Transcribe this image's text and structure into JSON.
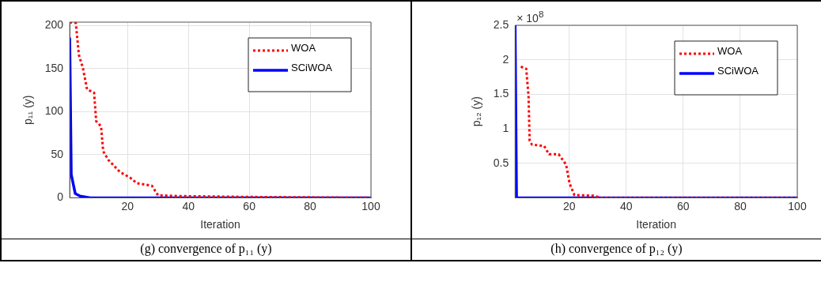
{
  "chart_data": [
    {
      "type": "line",
      "xlabel": "Iteration",
      "ylabel": "p₁₁ (y)",
      "xlim": [
        1,
        100
      ],
      "xticks": [
        20,
        40,
        60,
        80,
        100
      ],
      "ylim": [
        0,
        204
      ],
      "yticks": [
        0,
        50,
        100,
        150,
        200
      ],
      "grid": true,
      "legend": "top right",
      "annotations": [
        "(g) convergence of p₁₁ (y)"
      ],
      "series": [
        {
          "name": "WOA",
          "color": "#ff0000",
          "line_style": "dotted",
          "x": [
            1,
            3,
            4,
            5.3,
            6.7,
            9,
            9.7,
            11.3,
            12,
            13.7,
            17.5,
            21,
            23,
            28,
            30,
            36.5,
            60,
            100
          ],
          "values": [
            204,
            203,
            166,
            151,
            126,
            122,
            89,
            83,
            54,
            44,
            30,
            23,
            17,
            14,
            3,
            2,
            1,
            0
          ]
        },
        {
          "name": "SCiWOA",
          "color": "#0000ff",
          "line_style": "solid",
          "x": [
            1,
            1.5,
            2.8,
            4.4,
            7.7,
            100
          ],
          "values": [
            186,
            27,
            5,
            2,
            0,
            0
          ]
        }
      ]
    },
    {
      "type": "line",
      "xlabel": "Iteration",
      "ylabel": "p₁₂ (y)",
      "xlim": [
        1,
        100
      ],
      "xticks": [
        20,
        40,
        60,
        80,
        100
      ],
      "ylim": [
        0,
        2.5
      ],
      "yticks": [
        0.5,
        1,
        1.5,
        2,
        2.5
      ],
      "grid": true,
      "legend": "top right",
      "annotations": [
        "× 10$^{8}$",
        "(h) convergence of p₁₂ (y)"
      ],
      "series": [
        {
          "name": "WOA",
          "color": "#ff0000",
          "line_style": "dotted",
          "x": [
            3,
            4.9,
            5.7,
            6.1,
            6.9,
            11.2,
            12.9,
            16.3,
            18.9,
            20.1,
            21.8,
            28.6,
            31,
            100
          ],
          "values": [
            1.9,
            1.87,
            1.48,
            0.83,
            0.77,
            0.75,
            0.63,
            0.63,
            0.48,
            0.21,
            0.04,
            0.03,
            0,
            0
          ]
        },
        {
          "name": "SCiWOA",
          "color": "#0000ff",
          "line_style": "solid",
          "x": [
            1,
            1.5,
            100
          ],
          "values": [
            2.5,
            0,
            0
          ]
        }
      ]
    }
  ]
}
